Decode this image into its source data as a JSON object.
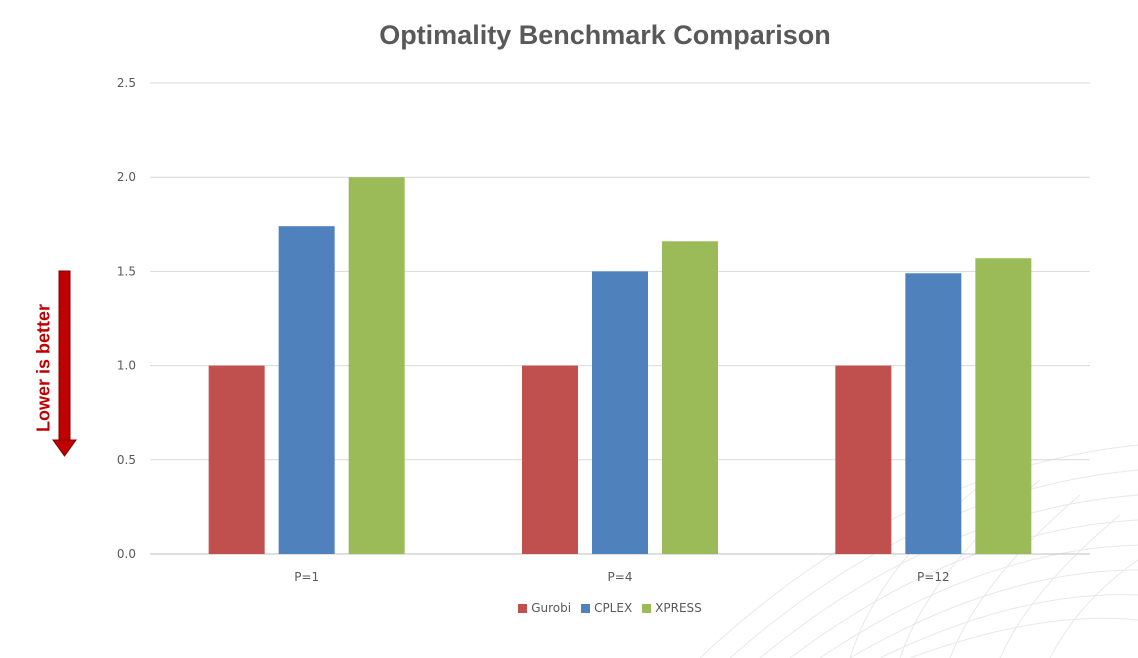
{
  "chart_data": {
    "type": "bar",
    "title": "Optimality Benchmark Comparison",
    "categories": [
      "P=1",
      "P=4",
      "P=12"
    ],
    "series": [
      {
        "name": "Gurobi",
        "values": [
          1.0,
          1.0,
          1.0
        ],
        "color": "#c0504d"
      },
      {
        "name": "CPLEX",
        "values": [
          1.74,
          1.5,
          1.49
        ],
        "color": "#4f81bd"
      },
      {
        "name": "XPRESS",
        "values": [
          2.0,
          1.66,
          1.57
        ],
        "color": "#9bbb59"
      }
    ],
    "yticks": [
      "0.0",
      "0.5",
      "1.0",
      "1.5",
      "2.0",
      "2.5"
    ],
    "ylim": [
      0,
      2.5
    ],
    "grid": true,
    "legend_position": "bottom"
  },
  "annotation": {
    "text": "Lower is better",
    "color": "#c00000"
  }
}
